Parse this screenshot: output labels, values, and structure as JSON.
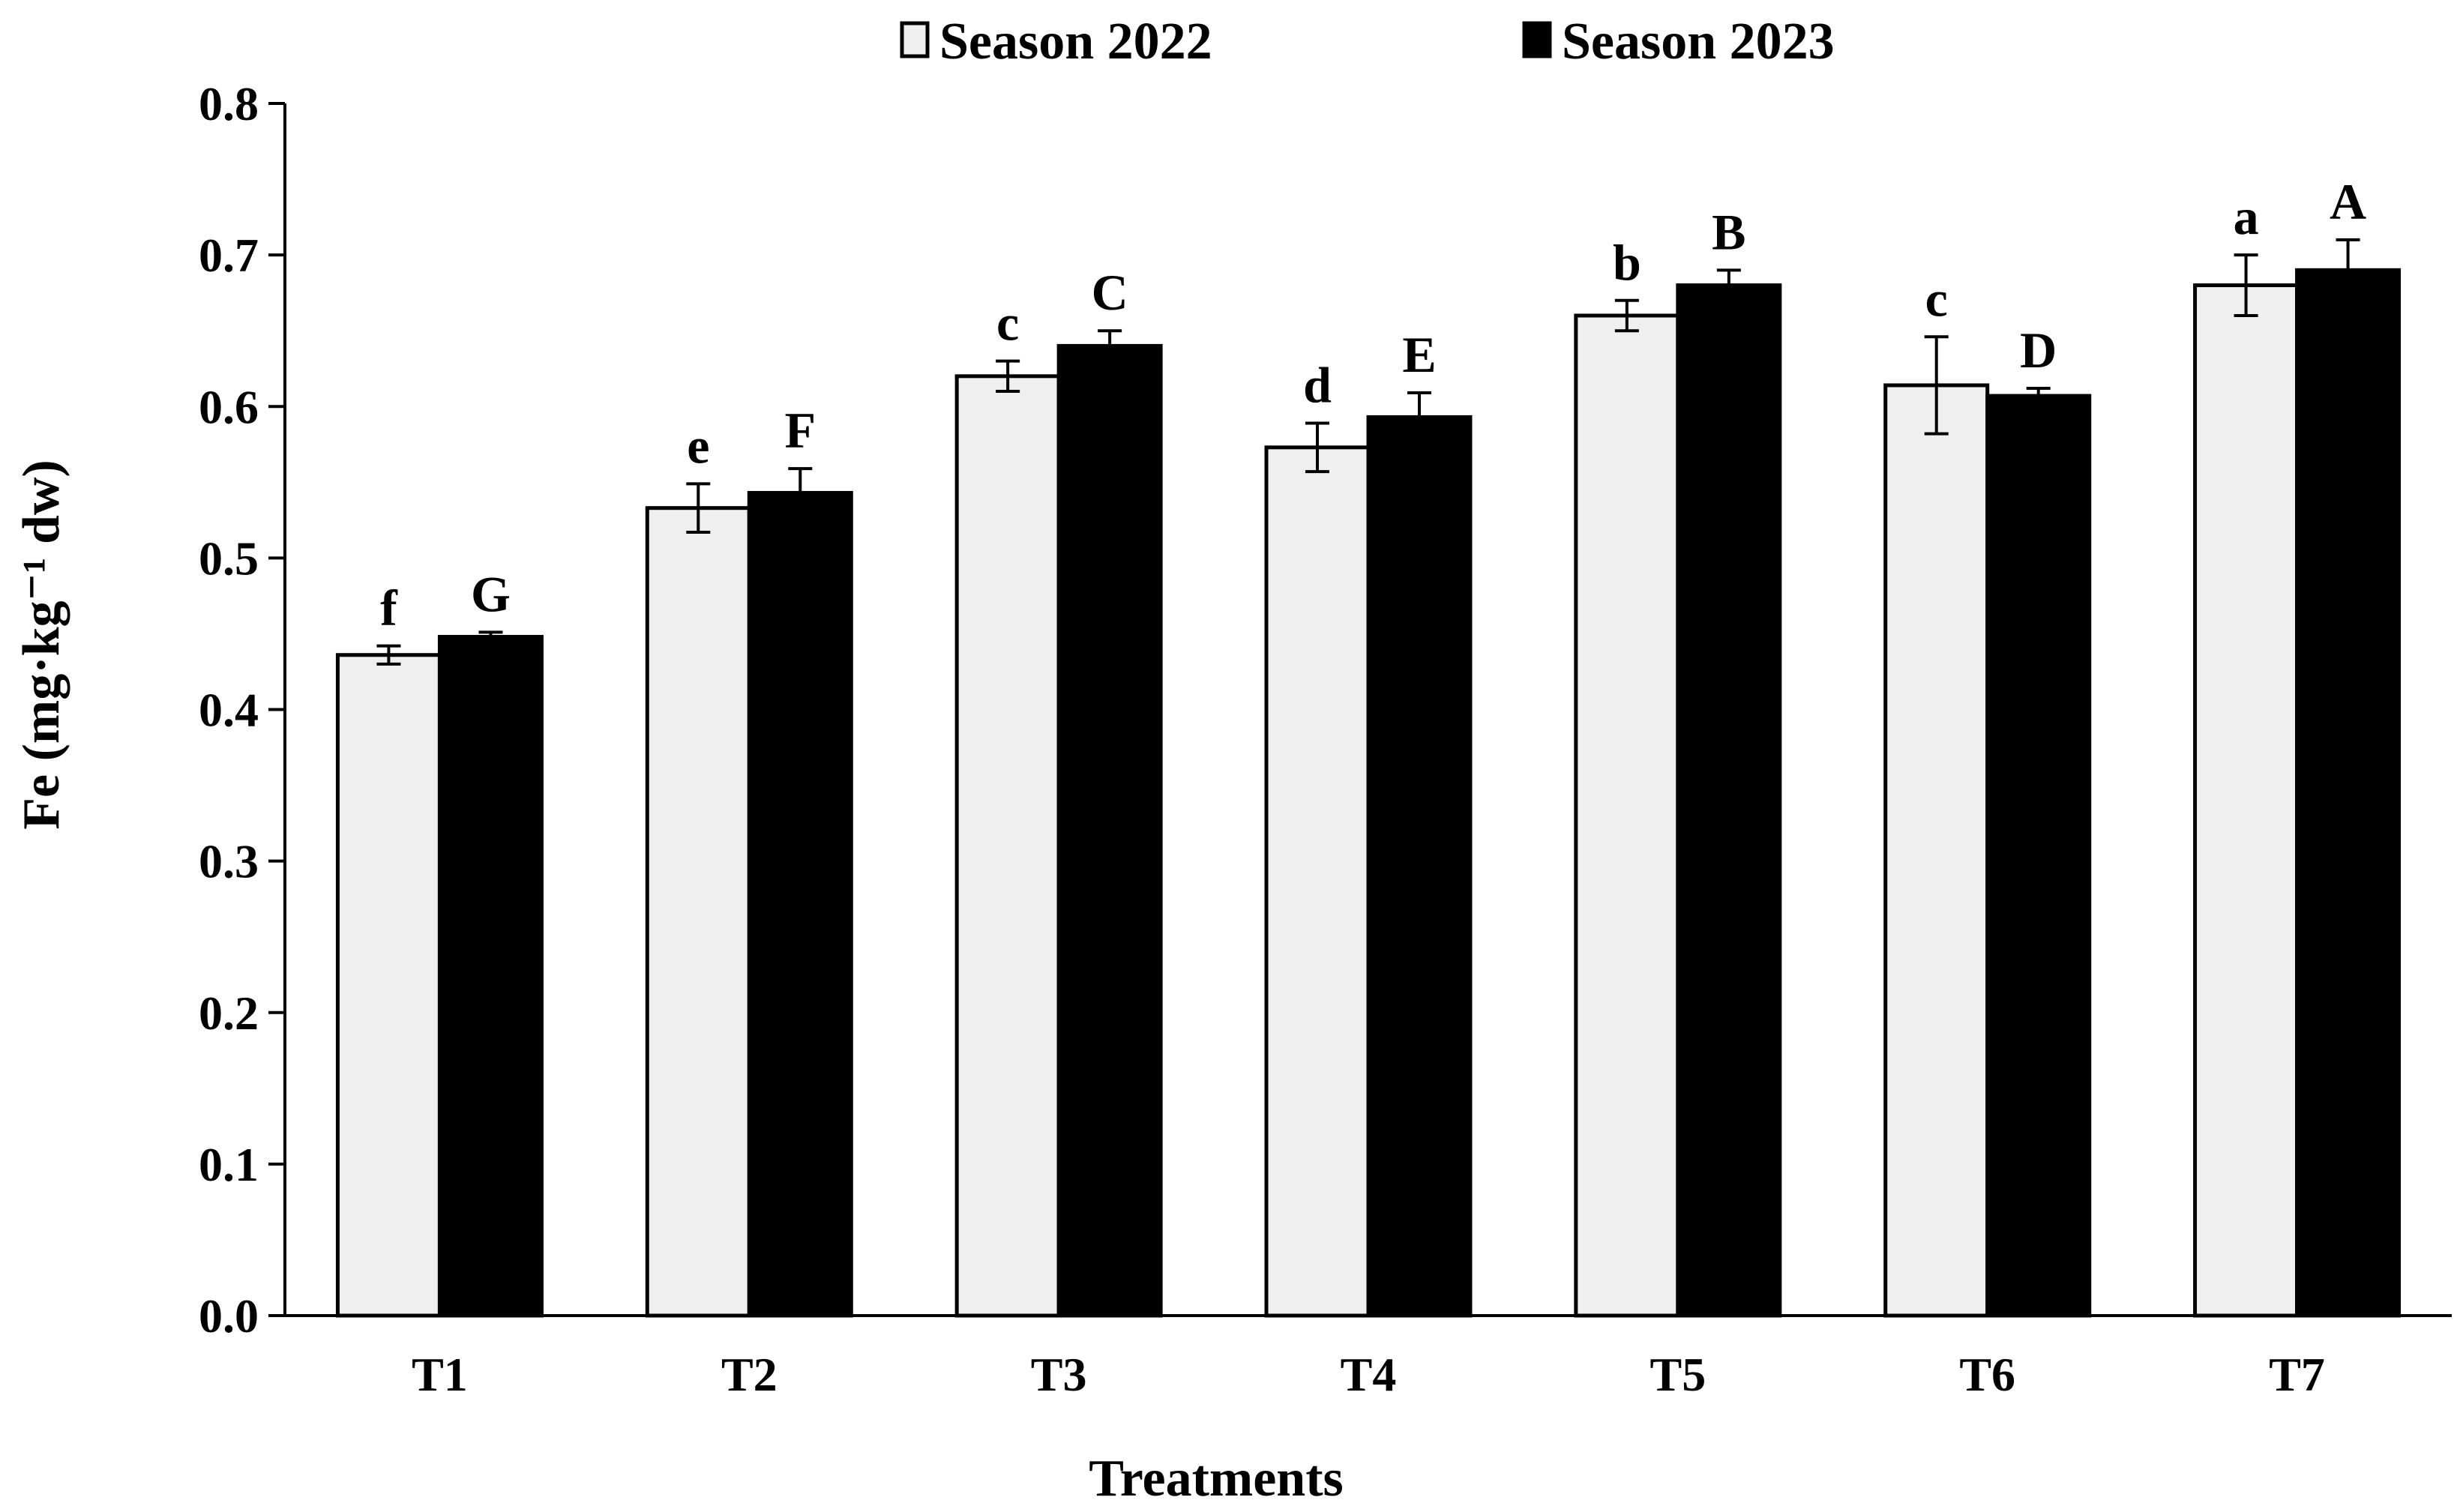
{
  "chart_data": {
    "type": "bar",
    "title": "",
    "xlabel": "Treatments",
    "ylabel": "Fe (mg·kg⁻¹ dw)",
    "ylim": [
      0,
      0.8
    ],
    "yticks": [
      "0.0",
      "0.1",
      "0.2",
      "0.3",
      "0.4",
      "0.5",
      "0.6",
      "0.7",
      "0.8"
    ],
    "categories": [
      "T1",
      "T2",
      "T3",
      "T4",
      "T5",
      "T6",
      "T7"
    ],
    "legend_position": "top-center",
    "series": [
      {
        "name": "Season 2022",
        "color": "#efefef",
        "values": [
          0.436,
          0.533,
          0.62,
          0.573,
          0.66,
          0.614,
          0.68
        ],
        "errors": [
          0.006,
          0.016,
          0.01,
          0.016,
          0.01,
          0.032,
          0.02
        ],
        "labels": [
          "f",
          "e",
          "c",
          "d",
          "b",
          "c",
          "a"
        ]
      },
      {
        "name": "Season 2023",
        "color": "#000000",
        "values": [
          0.448,
          0.543,
          0.64,
          0.593,
          0.68,
          0.607,
          0.69
        ],
        "errors": [
          0.003,
          0.016,
          0.01,
          0.016,
          0.01,
          0.005,
          0.02
        ],
        "labels": [
          "G",
          "F",
          "C",
          "E",
          "B",
          "D",
          "A"
        ]
      }
    ]
  }
}
